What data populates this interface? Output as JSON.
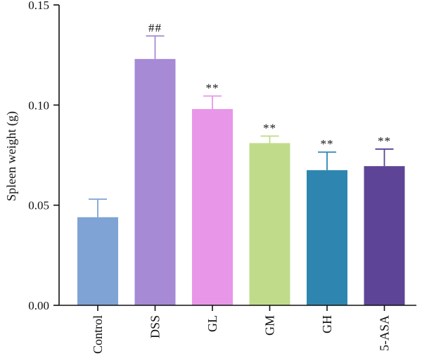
{
  "chart_data": {
    "type": "bar",
    "title": "",
    "xlabel": "",
    "ylabel": "Spleen weight (g)",
    "ylim": [
      0,
      0.15
    ],
    "yticks": [
      0.0,
      0.05,
      0.1,
      0.15
    ],
    "ytick_labels": [
      "0.00",
      "0.05",
      "0.10",
      "0.15"
    ],
    "categories": [
      "Control",
      "DSS",
      "GL",
      "GM",
      "GH",
      "5-ASA"
    ],
    "values": [
      0.044,
      0.123,
      0.098,
      0.081,
      0.0675,
      0.0695
    ],
    "errors": [
      0.009,
      0.0115,
      0.0065,
      0.0035,
      0.009,
      0.0085
    ],
    "significance": [
      "",
      "##",
      "**",
      "**",
      "**",
      "**"
    ],
    "colors": [
      "#7fa3d4",
      "#a68ad6",
      "#e896e8",
      "#c0dc8a",
      "#2e86b0",
      "#5e4496"
    ],
    "grid": false,
    "legend": "none"
  }
}
